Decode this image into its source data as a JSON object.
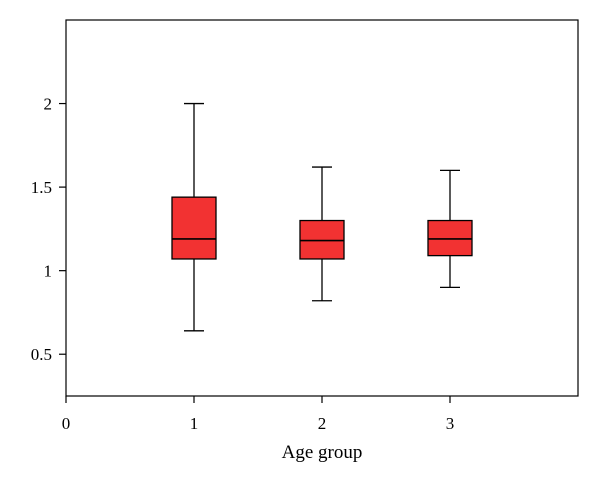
{
  "chart_data": {
    "type": "box",
    "title": "",
    "xlabel": "Age group",
    "ylabel": "",
    "xlim": [
      0,
      4
    ],
    "ylim": [
      0.25,
      2.5
    ],
    "x_ticks": [
      "0",
      "1",
      "2",
      "3"
    ],
    "y_ticks": [
      "0.5",
      "1",
      "1.5",
      "2"
    ],
    "grid": false,
    "legend": "none",
    "box_color": "#f23232",
    "series": [
      {
        "x": 1,
        "min": 0.64,
        "q1": 1.07,
        "median": 1.19,
        "q3": 1.44,
        "max": 2.0
      },
      {
        "x": 2,
        "min": 0.82,
        "q1": 1.07,
        "median": 1.18,
        "q3": 1.3,
        "max": 1.62
      },
      {
        "x": 3,
        "min": 0.9,
        "q1": 1.09,
        "median": 1.19,
        "q3": 1.3,
        "max": 1.6
      }
    ]
  }
}
